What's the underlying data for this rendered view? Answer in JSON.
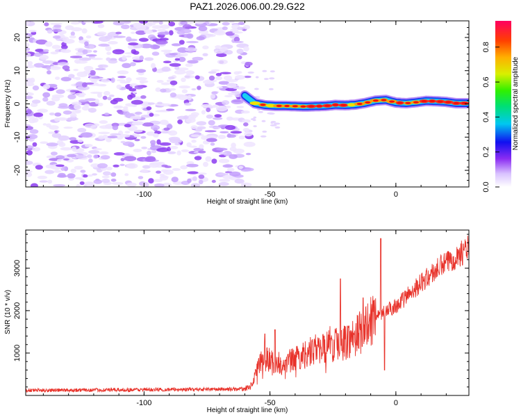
{
  "title": "PAZ1.2026.006.00.29.G22",
  "colors": {
    "snr_line": "#e8322a",
    "axis": "#000000",
    "scatter": "#9a55f0",
    "ridge": "#1f3cf0"
  },
  "chart_data": [
    {
      "type": "heatmap",
      "name": "spectrogram",
      "xlabel": "Height of straight line (km)",
      "ylabel": "Frequency (Hz)",
      "xlim": [
        -147,
        29
      ],
      "ylim": [
        -25,
        25
      ],
      "xticks": [
        "-100",
        "-50",
        "0"
      ],
      "yticks": [
        "20",
        "10",
        "0",
        "-10",
        "-20"
      ],
      "xtick_values": [
        -100,
        -50,
        0
      ],
      "ytick_values": [
        20,
        10,
        0,
        -10,
        -20
      ],
      "noise_region_x": [
        -147,
        -58
      ],
      "ridge": {
        "x": [
          -60,
          -56,
          -52,
          -48,
          -44,
          -40,
          -36,
          -32,
          -28,
          -24,
          -20,
          -16,
          -12,
          -8,
          -4,
          0,
          4,
          8,
          12,
          16,
          20,
          24,
          29
        ],
        "freq": [
          2.5,
          0.2,
          -0.4,
          -0.6,
          -0.6,
          -0.7,
          -0.8,
          -0.7,
          -0.6,
          -0.3,
          -0.4,
          -0.2,
          0.3,
          1.0,
          1.2,
          0.4,
          0.2,
          0.5,
          0.9,
          0.8,
          0.6,
          0.2,
          0.2
        ],
        "amp": [
          0.3,
          0.5,
          0.6,
          0.7,
          0.8,
          0.9,
          0.85,
          0.95,
          0.8,
          0.9,
          0.8,
          0.7,
          0.7,
          0.8,
          0.7,
          0.8,
          0.85,
          0.9,
          0.8,
          0.85,
          0.95,
          0.9,
          0.95
        ]
      },
      "colorbar": {
        "label": "Normalized spectral amplitude",
        "range": [
          0,
          0.95
        ],
        "ticks": [
          "0.0",
          "0.2",
          "0.4",
          "0.6",
          "0.8"
        ],
        "tick_values": [
          0,
          0.2,
          0.4,
          0.6,
          0.8
        ]
      }
    },
    {
      "type": "line",
      "name": "snr",
      "xlabel": "Height of straight line (km)",
      "ylabel": "SNR (10 * v/v)",
      "xlim": [
        -147,
        29
      ],
      "ylim": [
        0,
        3900
      ],
      "xticks": [
        "-100",
        "-50",
        "0"
      ],
      "yticks": [
        "1000",
        "2000",
        "3000"
      ],
      "xtick_values": [
        -100,
        -50,
        0
      ],
      "ytick_values": [
        1000,
        2000,
        3000
      ],
      "envelope": {
        "x": [
          -147,
          -60,
          -57,
          -54,
          -50,
          -46,
          -42,
          -38,
          -34,
          -30,
          -26,
          -22,
          -18,
          -14,
          -10,
          -6,
          -2,
          2,
          6,
          10,
          14,
          18,
          22,
          26,
          29
        ],
        "snr": [
          120,
          150,
          250,
          800,
          850,
          700,
          800,
          900,
          1050,
          1100,
          1150,
          1200,
          1350,
          1500,
          1700,
          1900,
          2050,
          2200,
          2450,
          2650,
          2850,
          3050,
          3200,
          3350,
          3500
        ]
      },
      "spikes": {
        "x": [
          -52,
          -48,
          -22,
          -13,
          -6,
          -4.5
        ],
        "snr": [
          1450,
          1550,
          2750,
          2300,
          3700,
          600
        ]
      }
    }
  ]
}
